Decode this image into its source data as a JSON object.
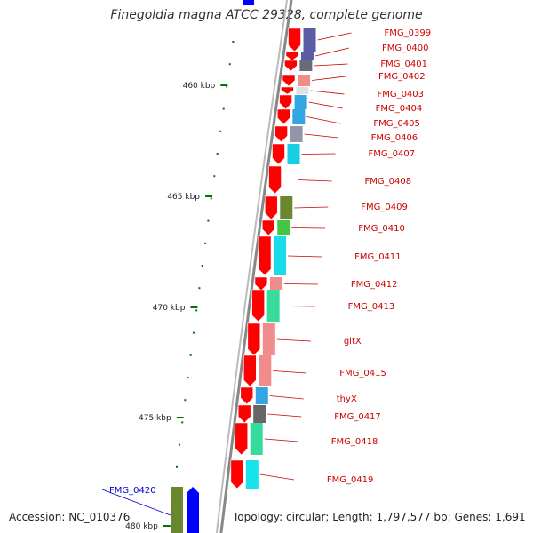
{
  "title": "Finegoldia magna ATCC 29328, complete genome",
  "footer": {
    "accession": "Accession: NC_010376",
    "summary": "Topology: circular; Length: 1,797,577 bp; Genes: 1,691"
  },
  "ruler": {
    "unit": "kbp",
    "labels": [
      "460 kbp",
      "465 kbp",
      "470 kbp",
      "475 kbp",
      "480 kbp"
    ]
  },
  "genes": [
    {
      "name": "FMG_0399",
      "strand": "reverse",
      "color": "#4a4a9a"
    },
    {
      "name": "FMG_0400",
      "strand": "reverse",
      "color": "#4a4a9a"
    },
    {
      "name": "FMG_0401",
      "strand": "reverse",
      "color": "#5a5a6a"
    },
    {
      "name": "FMG_0402",
      "strand": "reverse",
      "color": "#f08080"
    },
    {
      "name": "FMG_0403",
      "strand": "reverse",
      "color": "#dddddd"
    },
    {
      "name": "FMG_0404",
      "strand": "reverse",
      "color": "#1e9be0"
    },
    {
      "name": "FMG_0405",
      "strand": "reverse",
      "color": "#1e9be0"
    },
    {
      "name": "FMG_0406",
      "strand": "reverse",
      "color": "#8a8aa0"
    },
    {
      "name": "FMG_0407",
      "strand": "reverse",
      "color": "#00c8e0"
    },
    {
      "name": "FMG_0408",
      "strand": "reverse",
      "color": "#ffffff"
    },
    {
      "name": "FMG_0409",
      "strand": "reverse",
      "color": "#5a7a1a"
    },
    {
      "name": "FMG_0410",
      "strand": "reverse",
      "color": "#30c030"
    },
    {
      "name": "FMG_0411",
      "strand": "reverse",
      "color": "#00d8e8"
    },
    {
      "name": "FMG_0412",
      "strand": "reverse",
      "color": "#f08080"
    },
    {
      "name": "FMG_0413",
      "strand": "reverse",
      "color": "#20d890"
    },
    {
      "name": "gltX",
      "strand": "reverse",
      "color": "#f08080"
    },
    {
      "name": "FMG_0415",
      "strand": "reverse",
      "color": "#f08080"
    },
    {
      "name": "thyX",
      "strand": "reverse",
      "color": "#1e9be0"
    },
    {
      "name": "FMG_0417",
      "strand": "reverse",
      "color": "#555555"
    },
    {
      "name": "FMG_0418",
      "strand": "reverse",
      "color": "#20d890"
    },
    {
      "name": "FMG_0419",
      "strand": "reverse",
      "color": "#00e0e8"
    },
    {
      "name": "FMG_0420",
      "strand": "forward",
      "color": "#5a7a1a"
    }
  ],
  "colors": {
    "reverse_strand": "#ff0000",
    "forward_strand": "#0000ff",
    "reverse_label": "#cc0000",
    "forward_label": "#0000cc",
    "backbone": "#888888",
    "ticks": "#007700"
  }
}
